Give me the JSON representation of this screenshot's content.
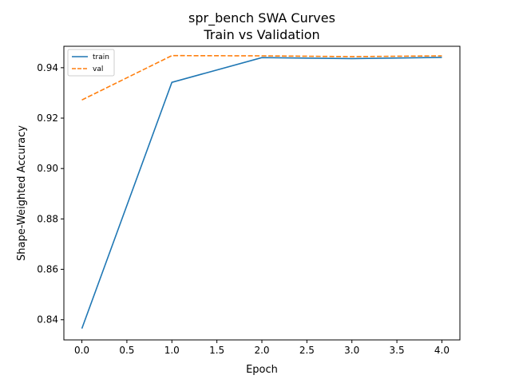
{
  "chart_data": {
    "type": "line",
    "title": "spr_bench SWA Curves",
    "subtitle": "Train vs Validation",
    "xlabel": "Epoch",
    "ylabel": "Shape-Weighted Accuracy",
    "xlim": [
      -0.2,
      4.2
    ],
    "ylim": [
      0.832,
      0.9485
    ],
    "xticks": [
      0.0,
      0.5,
      1.0,
      1.5,
      2.0,
      2.5,
      3.0,
      3.5,
      4.0
    ],
    "xtick_labels": [
      "0.0",
      "0.5",
      "1.0",
      "1.5",
      "2.0",
      "2.5",
      "3.0",
      "3.5",
      "4.0"
    ],
    "yticks": [
      0.84,
      0.86,
      0.88,
      0.9,
      0.92,
      0.94
    ],
    "ytick_labels": [
      "0.84",
      "0.86",
      "0.88",
      "0.90",
      "0.92",
      "0.94"
    ],
    "grid": false,
    "legend_position": "top-left",
    "x": [
      0,
      1,
      2,
      3,
      4
    ],
    "series": [
      {
        "name": "train",
        "values": [
          0.8365,
          0.9342,
          0.944,
          0.9436,
          0.9441
        ],
        "color": "#1f77b4",
        "style": "solid"
      },
      {
        "name": "val",
        "values": [
          0.9272,
          0.9448,
          0.9447,
          0.9444,
          0.9447
        ],
        "color": "#ff7f0e",
        "style": "dashed"
      }
    ]
  }
}
